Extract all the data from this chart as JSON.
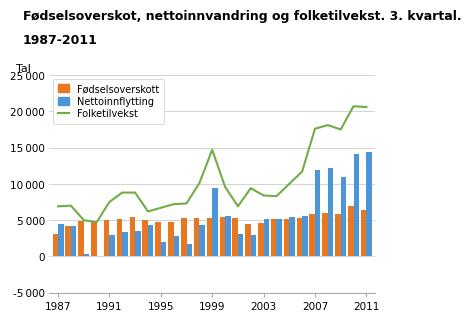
{
  "title_line1": "Fødselsoverskot, nettoinnvandring og folketilvekst. 3. kvartal.",
  "title_line2": "1987-2011",
  "ylabel": "Tal",
  "years": [
    1987,
    1988,
    1989,
    1990,
    1991,
    1992,
    1993,
    1994,
    1995,
    1996,
    1997,
    1998,
    1999,
    2000,
    2001,
    2002,
    2003,
    2004,
    2005,
    2006,
    2007,
    2008,
    2009,
    2010,
    2011
  ],
  "fodselsoverskott": [
    3100,
    4200,
    4900,
    4900,
    5050,
    5200,
    5500,
    5000,
    4800,
    4800,
    5300,
    5300,
    5300,
    5450,
    5300,
    4500,
    4600,
    5100,
    5200,
    5300,
    5800,
    6000,
    5900,
    6900,
    6400
  ],
  "nettoinnflytting": [
    4500,
    4200,
    300,
    100,
    2900,
    3300,
    3500,
    4300,
    2000,
    2800,
    1700,
    4300,
    9400,
    5600,
    3100,
    3000,
    5200,
    5100,
    5500,
    5600,
    11900,
    12200,
    10900,
    14100,
    14400
  ],
  "folketilvekst": [
    6900,
    7000,
    5000,
    4700,
    7500,
    8800,
    8800,
    6200,
    6700,
    7200,
    7300,
    10100,
    14700,
    9600,
    6900,
    9400,
    8400,
    8300,
    10000,
    11700,
    17600,
    18100,
    17500,
    20700,
    20600
  ],
  "bar_color_orange": "#E87722",
  "bar_color_blue": "#4C96D7",
  "line_color_green": "#70AD47",
  "bg_color": "#ffffff",
  "grid_color": "#cccccc",
  "ylim": [
    -5000,
    25000
  ],
  "yticks": [
    -5000,
    0,
    5000,
    10000,
    15000,
    20000,
    25000
  ],
  "legend_labels": [
    "Fødselsoverskott",
    "Nettoinnflytting",
    "Folketilvekst"
  ],
  "title_fontsize": 9,
  "axis_fontsize": 7.5,
  "ylabel_fontsize": 8
}
